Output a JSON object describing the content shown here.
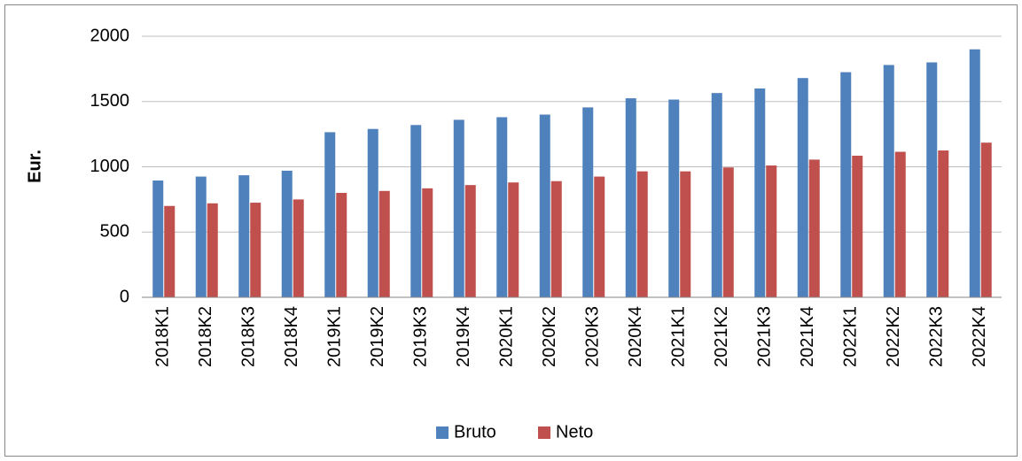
{
  "chart_data": {
    "type": "bar",
    "y_label": "Eur.",
    "categories": [
      "2018K1",
      "2018K2",
      "2018K3",
      "2018K4",
      "2019K1",
      "2019K2",
      "2019K3",
      "2019K4",
      "2020K1",
      "2020K2",
      "2020K3",
      "2020K4",
      "2021K1",
      "2021K2",
      "2021K3",
      "2021K4",
      "2022K1",
      "2022K2",
      "2022K3",
      "2022K4"
    ],
    "series": [
      {
        "name": "Bruto",
        "color": "#4f81bd",
        "values": [
          895,
          925,
          935,
          970,
          1265,
          1290,
          1320,
          1360,
          1380,
          1400,
          1455,
          1525,
          1515,
          1565,
          1600,
          1680,
          1725,
          1780,
          1800,
          1900
        ]
      },
      {
        "name": "Neto",
        "color": "#c0504d",
        "values": [
          700,
          720,
          725,
          750,
          800,
          815,
          835,
          860,
          880,
          890,
          925,
          965,
          965,
          995,
          1010,
          1055,
          1085,
          1115,
          1125,
          1185
        ]
      }
    ],
    "ylim": [
      0,
      2000
    ],
    "yticks": [
      0,
      500,
      1000,
      1500,
      2000
    ],
    "grid": true,
    "legend": "bottom"
  }
}
